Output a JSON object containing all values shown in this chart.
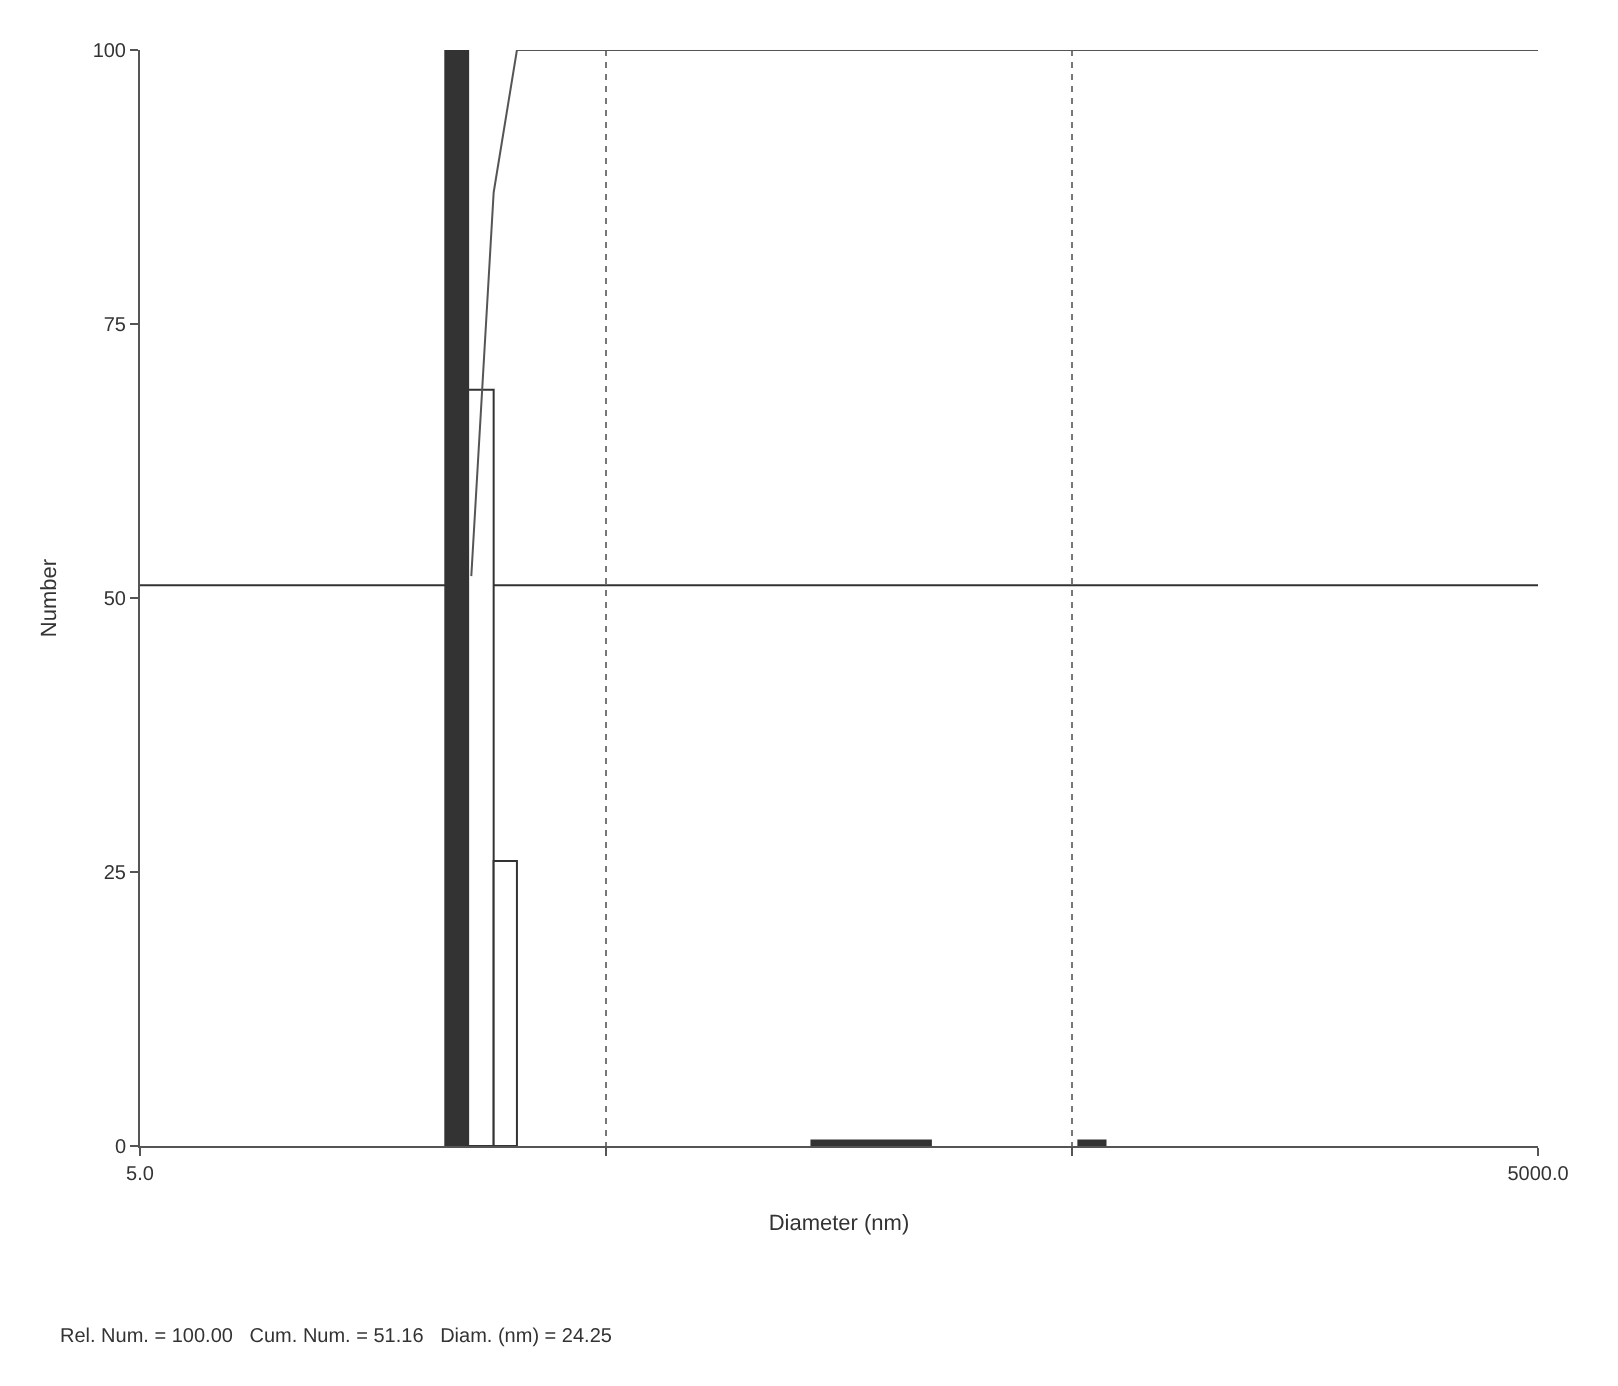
{
  "chart_data": {
    "type": "histogram",
    "xlabel": "Diameter (nm)",
    "ylabel": "Number",
    "series": [
      {
        "bins": [
          22.6,
          25.3,
          28.7,
          32.2,
          138,
          249,
          516,
          590
        ],
        "values": [
          100,
          69,
          26,
          null,
          0.5,
          null,
          0.5
        ],
        "colors": [
          "#333333",
          "#ffffff",
          "#ffffff",
          null,
          "#333333",
          null,
          "#333333"
        ]
      },
      {
        "type": "line",
        "x": [
          25.7,
          28.7,
          32.2,
          5000
        ],
        "values": [
          52,
          87,
          100,
          100
        ],
        "color": "#555555"
      }
    ],
    "log": "x",
    "xlim": [
      5,
      5000
    ],
    "xticks": [
      {
        "value": 5,
        "label": "5.0"
      },
      {
        "value": 50,
        "label": null
      },
      {
        "value": 500,
        "label": null
      },
      {
        "value": 5000,
        "label": "5000.0"
      }
    ],
    "ylim": [
      0,
      100
    ],
    "yticks": [
      0,
      25,
      50,
      75,
      100
    ],
    "grid": "x",
    "ref_lines": [
      {
        "axis": "y",
        "value": 51.16,
        "label": null,
        "color": "#333333"
      }
    ],
    "annotations": [
      "Rel. Num. = 100.00   Cum. Num. = 51.16   Diam. (nm) = 24.25"
    ]
  }
}
